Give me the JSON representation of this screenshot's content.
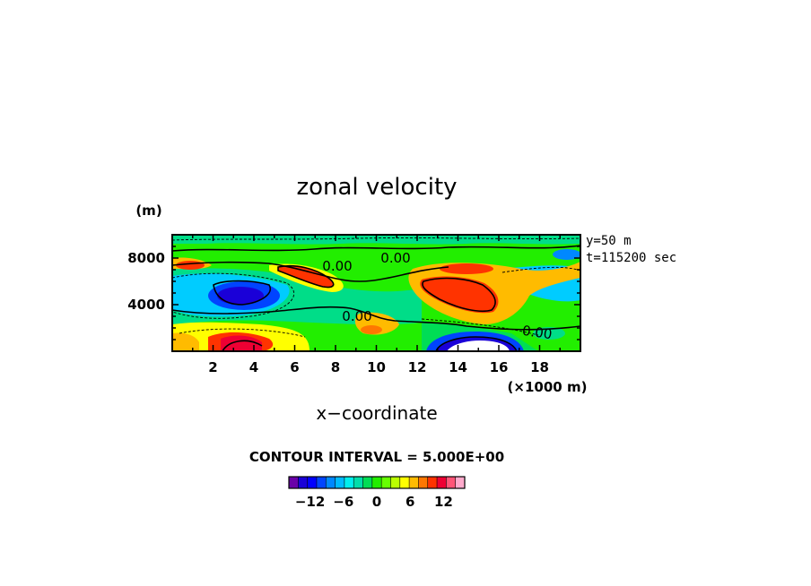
{
  "chart_data": {
    "type": "heatmap",
    "title": "zonal velocity",
    "xlabel": "x−coordinate",
    "x_unit": "(×1000 m)",
    "y_unit": "(m)",
    "xlim": [
      0,
      20
    ],
    "ylim": [
      0,
      10000
    ],
    "x_ticks": [
      2,
      4,
      6,
      8,
      10,
      12,
      14,
      16,
      18
    ],
    "y_ticks": [
      4000,
      8000
    ],
    "info": [
      "y=50 m",
      "t=115200 sec"
    ],
    "contour_interval_label": "CONTOUR INTERVAL = 5.000E+00",
    "contour_labels": [
      "0.00",
      "0.00",
      "0.00",
      "0.00"
    ],
    "colorbar": {
      "ticks": [
        -12,
        -6,
        0,
        6,
        12
      ],
      "tick_labels": [
        "−12",
        "−6",
        "0",
        "6",
        "12"
      ],
      "colors": [
        "#6a00a8",
        "#1a00d8",
        "#0000ff",
        "#0044ff",
        "#0088ff",
        "#00bbff",
        "#00eeee",
        "#00ddaa",
        "#00dd55",
        "#22ee00",
        "#66ff00",
        "#bbff00",
        "#ffff00",
        "#ffbb00",
        "#ff7700",
        "#ff3300",
        "#ee0033",
        "#ff5577",
        "#ffaacc"
      ]
    },
    "features": [
      {
        "type": "min",
        "x": 4.0,
        "y": 4700,
        "value": -12
      },
      {
        "type": "max",
        "x": 3.5,
        "y": 800,
        "value": 12
      },
      {
        "type": "max",
        "x": 7.5,
        "y": 6800,
        "value": 12
      },
      {
        "type": "max",
        "x": 15.0,
        "y": 5100,
        "value": 12
      },
      {
        "type": "min",
        "x": 15.0,
        "y": 600,
        "value": -12
      },
      {
        "type": "max",
        "x": 10.0,
        "y": 1800,
        "value": 8
      }
    ]
  }
}
